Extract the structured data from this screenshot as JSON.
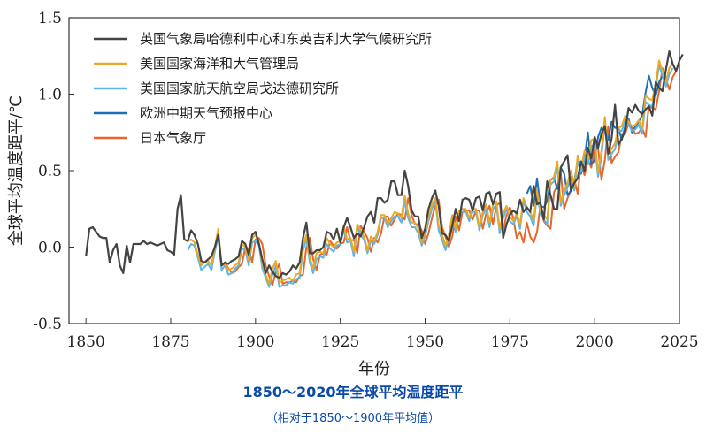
{
  "chart_data": {
    "type": "line",
    "xlabel": "年份",
    "ylabel": "全球平均温度距平/℃",
    "xlim": [
      1845,
      2025
    ],
    "ylim": [
      -0.5,
      1.5
    ],
    "xticks": [
      1850,
      1875,
      1900,
      1925,
      1950,
      1975,
      2000,
      2025
    ],
    "yticks": [
      -0.5,
      0.0,
      0.5,
      1.0,
      1.5
    ],
    "ytick_labels": [
      "-0.5",
      "0.0",
      "0.5",
      "1.0",
      "1.5"
    ],
    "grid": false,
    "legend_position": "top-left",
    "series": [
      {
        "name": "英国气象局哈德利中心和东英吉利大学气候研究所",
        "color": "#444444",
        "start_year": 1850,
        "values": [
          -0.06,
          0.12,
          0.13,
          0.1,
          0.07,
          0.06,
          0.06,
          -0.1,
          -0.02,
          0.02,
          -0.12,
          -0.17,
          0.01,
          -0.1,
          0.02,
          0.02,
          0.02,
          0.04,
          0.02,
          0.03,
          0.02,
          0.01,
          0.02,
          0.03,
          -0.02,
          -0.03,
          -0.05,
          0.25,
          0.34,
          0.05,
          0.04,
          0.11,
          0.08,
          0.02,
          -0.09,
          -0.1,
          -0.08,
          -0.06,
          0.0,
          0.08,
          -0.12,
          -0.1,
          -0.11,
          -0.09,
          -0.08,
          -0.06,
          0.04,
          0.02,
          -0.05,
          0.08,
          0.1,
          0.02,
          -0.08,
          -0.17,
          -0.12,
          -0.16,
          -0.19,
          -0.2,
          -0.17,
          -0.18,
          -0.16,
          -0.12,
          -0.14,
          -0.1,
          0.06,
          0.16,
          -0.04,
          -0.04,
          -0.02,
          -0.02,
          0.0,
          0.1,
          0.09,
          0.05,
          0.12,
          0.03,
          0.13,
          0.19,
          0.13,
          0.06,
          0.09,
          0.07,
          0.13,
          0.2,
          0.23,
          0.16,
          0.32,
          0.32,
          0.29,
          0.31,
          0.43,
          0.43,
          0.34,
          0.34,
          0.5,
          0.4,
          0.24,
          0.2,
          0.2,
          0.06,
          0.12,
          0.25,
          0.32,
          0.37,
          0.27,
          0.09,
          0.08,
          0.04,
          0.14,
          0.25,
          0.17,
          0.31,
          0.32,
          0.31,
          0.24,
          0.32,
          0.33,
          0.24,
          0.35,
          0.36,
          0.28,
          0.35,
          0.36,
          0.06,
          0.15,
          0.21,
          0.24,
          0.22,
          0.31,
          0.23,
          0.26,
          0.23,
          0.4,
          0.28,
          0.29,
          0.18,
          0.43,
          0.34,
          0.25,
          0.25,
          0.52,
          0.56,
          0.6,
          0.37,
          0.42,
          0.45,
          0.56,
          0.5,
          0.65,
          0.58,
          0.72,
          0.65,
          0.74,
          0.79,
          0.61,
          0.71,
          0.93,
          0.67,
          0.71,
          0.76,
          0.91,
          0.88,
          0.93,
          0.89,
          0.87,
          0.9,
          0.92,
          0.86,
          1.08,
          1.04,
          1.02,
          1.16,
          1.28,
          1.2,
          1.15,
          1.22,
          1.26
        ]
      },
      {
        "name": "美国国家海洋和大气管理局",
        "color": "#e8a928",
        "start_year": 1880,
        "values": [
          0.04,
          0.05,
          0.03,
          -0.05,
          -0.12,
          -0.1,
          -0.09,
          -0.12,
          0.0,
          0.12,
          -0.12,
          -0.11,
          -0.15,
          -0.14,
          -0.12,
          -0.1,
          0.02,
          0.0,
          -0.09,
          0.06,
          0.08,
          0.03,
          -0.11,
          -0.18,
          -0.24,
          -0.14,
          -0.09,
          -0.23,
          -0.22,
          -0.21,
          -0.2,
          -0.22,
          -0.18,
          -0.17,
          0.01,
          0.08,
          -0.07,
          -0.14,
          -0.04,
          -0.03,
          -0.04,
          0.06,
          0.02,
          0.0,
          0.03,
          0.04,
          0.14,
          0.05,
          0.06,
          -0.03,
          0.15,
          0.11,
          0.07,
          -0.02,
          0.07,
          0.04,
          0.1,
          0.21,
          0.21,
          0.15,
          0.19,
          0.23,
          0.22,
          0.19,
          0.34,
          0.22,
          0.16,
          0.16,
          0.12,
          0.03,
          0.1,
          0.2,
          0.28,
          0.32,
          0.14,
          0.08,
          0.01,
          0.08,
          0.21,
          0.12,
          0.24,
          0.25,
          0.25,
          0.19,
          0.25,
          0.25,
          0.13,
          0.23,
          0.28,
          0.16,
          0.28,
          0.3,
          0.12,
          0.22,
          0.27,
          0.2,
          0.17,
          0.22,
          0.15,
          0.32,
          0.26,
          0.23,
          0.17,
          0.37,
          0.24,
          0.21,
          0.18,
          0.44,
          0.46,
          0.56,
          0.29,
          0.37,
          0.42,
          0.5,
          0.4,
          0.6,
          0.52,
          0.63,
          0.57,
          0.7,
          0.71,
          0.49,
          0.63,
          0.85,
          0.61,
          0.64,
          0.68,
          0.78,
          0.79,
          0.86,
          0.82,
          0.79,
          0.8,
          0.83,
          0.77,
          0.99,
          0.97,
          0.96,
          1.07,
          1.22,
          1.15,
          1.08,
          1.17,
          1.2
        ]
      },
      {
        "name": "美国国家航天航空局戈达德研究所",
        "color": "#5bb5e6",
        "start_year": 1880,
        "values": [
          -0.02,
          0.02,
          0.01,
          -0.07,
          -0.15,
          -0.13,
          -0.11,
          -0.15,
          -0.03,
          0.07,
          -0.15,
          -0.12,
          -0.18,
          -0.17,
          -0.14,
          -0.12,
          -0.01,
          -0.02,
          -0.12,
          0.03,
          0.04,
          0.01,
          -0.14,
          -0.2,
          -0.26,
          -0.18,
          -0.12,
          -0.26,
          -0.25,
          -0.25,
          -0.23,
          -0.24,
          -0.21,
          -0.2,
          -0.02,
          0.05,
          -0.1,
          -0.17,
          -0.08,
          -0.06,
          -0.07,
          0.02,
          -0.01,
          -0.03,
          0.01,
          0.02,
          0.11,
          0.03,
          0.04,
          -0.06,
          0.13,
          0.08,
          0.05,
          -0.04,
          0.04,
          0.02,
          0.08,
          0.19,
          0.19,
          0.13,
          0.17,
          0.2,
          0.2,
          0.16,
          0.3,
          0.19,
          0.13,
          0.13,
          0.09,
          0.01,
          0.07,
          0.17,
          0.25,
          0.3,
          0.11,
          0.05,
          -0.02,
          0.06,
          0.19,
          0.1,
          0.22,
          0.23,
          0.23,
          0.17,
          0.23,
          0.23,
          0.11,
          0.21,
          0.25,
          0.13,
          0.25,
          0.28,
          0.09,
          0.19,
          0.25,
          0.17,
          0.15,
          0.2,
          0.12,
          0.3,
          0.23,
          0.2,
          0.14,
          0.35,
          0.22,
          0.18,
          0.15,
          0.41,
          0.43,
          0.52,
          0.27,
          0.34,
          0.39,
          0.46,
          0.37,
          0.57,
          0.49,
          0.59,
          0.54,
          0.66,
          0.67,
          0.46,
          0.59,
          0.81,
          0.57,
          0.61,
          0.64,
          0.76,
          0.76,
          0.83,
          0.8,
          0.76,
          0.77,
          0.8,
          0.74,
          0.95,
          0.93,
          0.92,
          1.04,
          1.19,
          1.12,
          1.05,
          1.13,
          1.17
        ]
      },
      {
        "name": "欧洲中期天气预报中心",
        "color": "#1f6fb5",
        "start_year": 1980,
        "values": [
          0.35,
          0.4,
          0.27,
          0.45,
          0.27,
          0.26,
          0.3,
          0.44,
          0.45,
          0.38,
          0.52,
          0.48,
          0.34,
          0.37,
          0.43,
          0.57,
          0.48,
          0.58,
          0.75,
          0.54,
          0.57,
          0.72,
          0.78,
          0.76,
          0.7,
          0.82,
          0.78,
          0.78,
          0.7,
          0.79,
          0.84,
          0.75,
          0.79,
          0.82,
          0.86,
          1.01,
          1.12,
          1.04,
          0.99,
          1.08,
          1.12
        ]
      },
      {
        "name": "日本气象厅",
        "color": "#e8662a",
        "start_year": 1891,
        "values": [
          -0.1,
          -0.14,
          -0.17,
          -0.16,
          -0.13,
          -0.11,
          0.0,
          -0.01,
          -0.1,
          0.05,
          0.06,
          0.02,
          -0.12,
          -0.19,
          -0.25,
          -0.16,
          -0.11,
          -0.24,
          -0.23,
          -0.23,
          -0.22,
          -0.23,
          -0.19,
          -0.18,
          0.0,
          0.06,
          -0.08,
          -0.15,
          -0.05,
          -0.04,
          -0.05,
          0.04,
          0.01,
          -0.01,
          0.02,
          0.03,
          0.13,
          0.04,
          0.05,
          -0.04,
          0.14,
          0.1,
          0.06,
          -0.03,
          0.06,
          0.03,
          0.09,
          0.2,
          0.2,
          0.14,
          0.18,
          0.22,
          0.21,
          0.18,
          0.32,
          0.21,
          0.15,
          0.15,
          0.11,
          0.02,
          0.09,
          0.19,
          0.27,
          0.31,
          0.13,
          0.07,
          0.0,
          0.07,
          0.2,
          0.11,
          0.23,
          0.24,
          0.24,
          0.18,
          0.24,
          0.24,
          0.12,
          0.22,
          0.27,
          0.15,
          0.27,
          0.29,
          0.11,
          0.21,
          0.26,
          0.19,
          0.06,
          0.1,
          0.03,
          0.16,
          0.07,
          0.03,
          0.1,
          0.27,
          0.17,
          0.14,
          0.12,
          0.36,
          0.4,
          0.49,
          0.25,
          0.32,
          0.37,
          0.44,
          0.35,
          0.55,
          0.47,
          0.57,
          0.52,
          0.64,
          0.65,
          0.44,
          0.57,
          0.79,
          0.55,
          0.59,
          0.62,
          0.74,
          0.74,
          0.81,
          0.78,
          0.74,
          0.75,
          0.78,
          0.72,
          0.93,
          0.91,
          0.9,
          1.02,
          1.17,
          1.1,
          1.03,
          1.11,
          1.15
        ]
      }
    ]
  },
  "caption": {
    "title": "1850～2020年全球平均温度距平",
    "subtitle": "（相对于1850～1900年平均值）"
  }
}
